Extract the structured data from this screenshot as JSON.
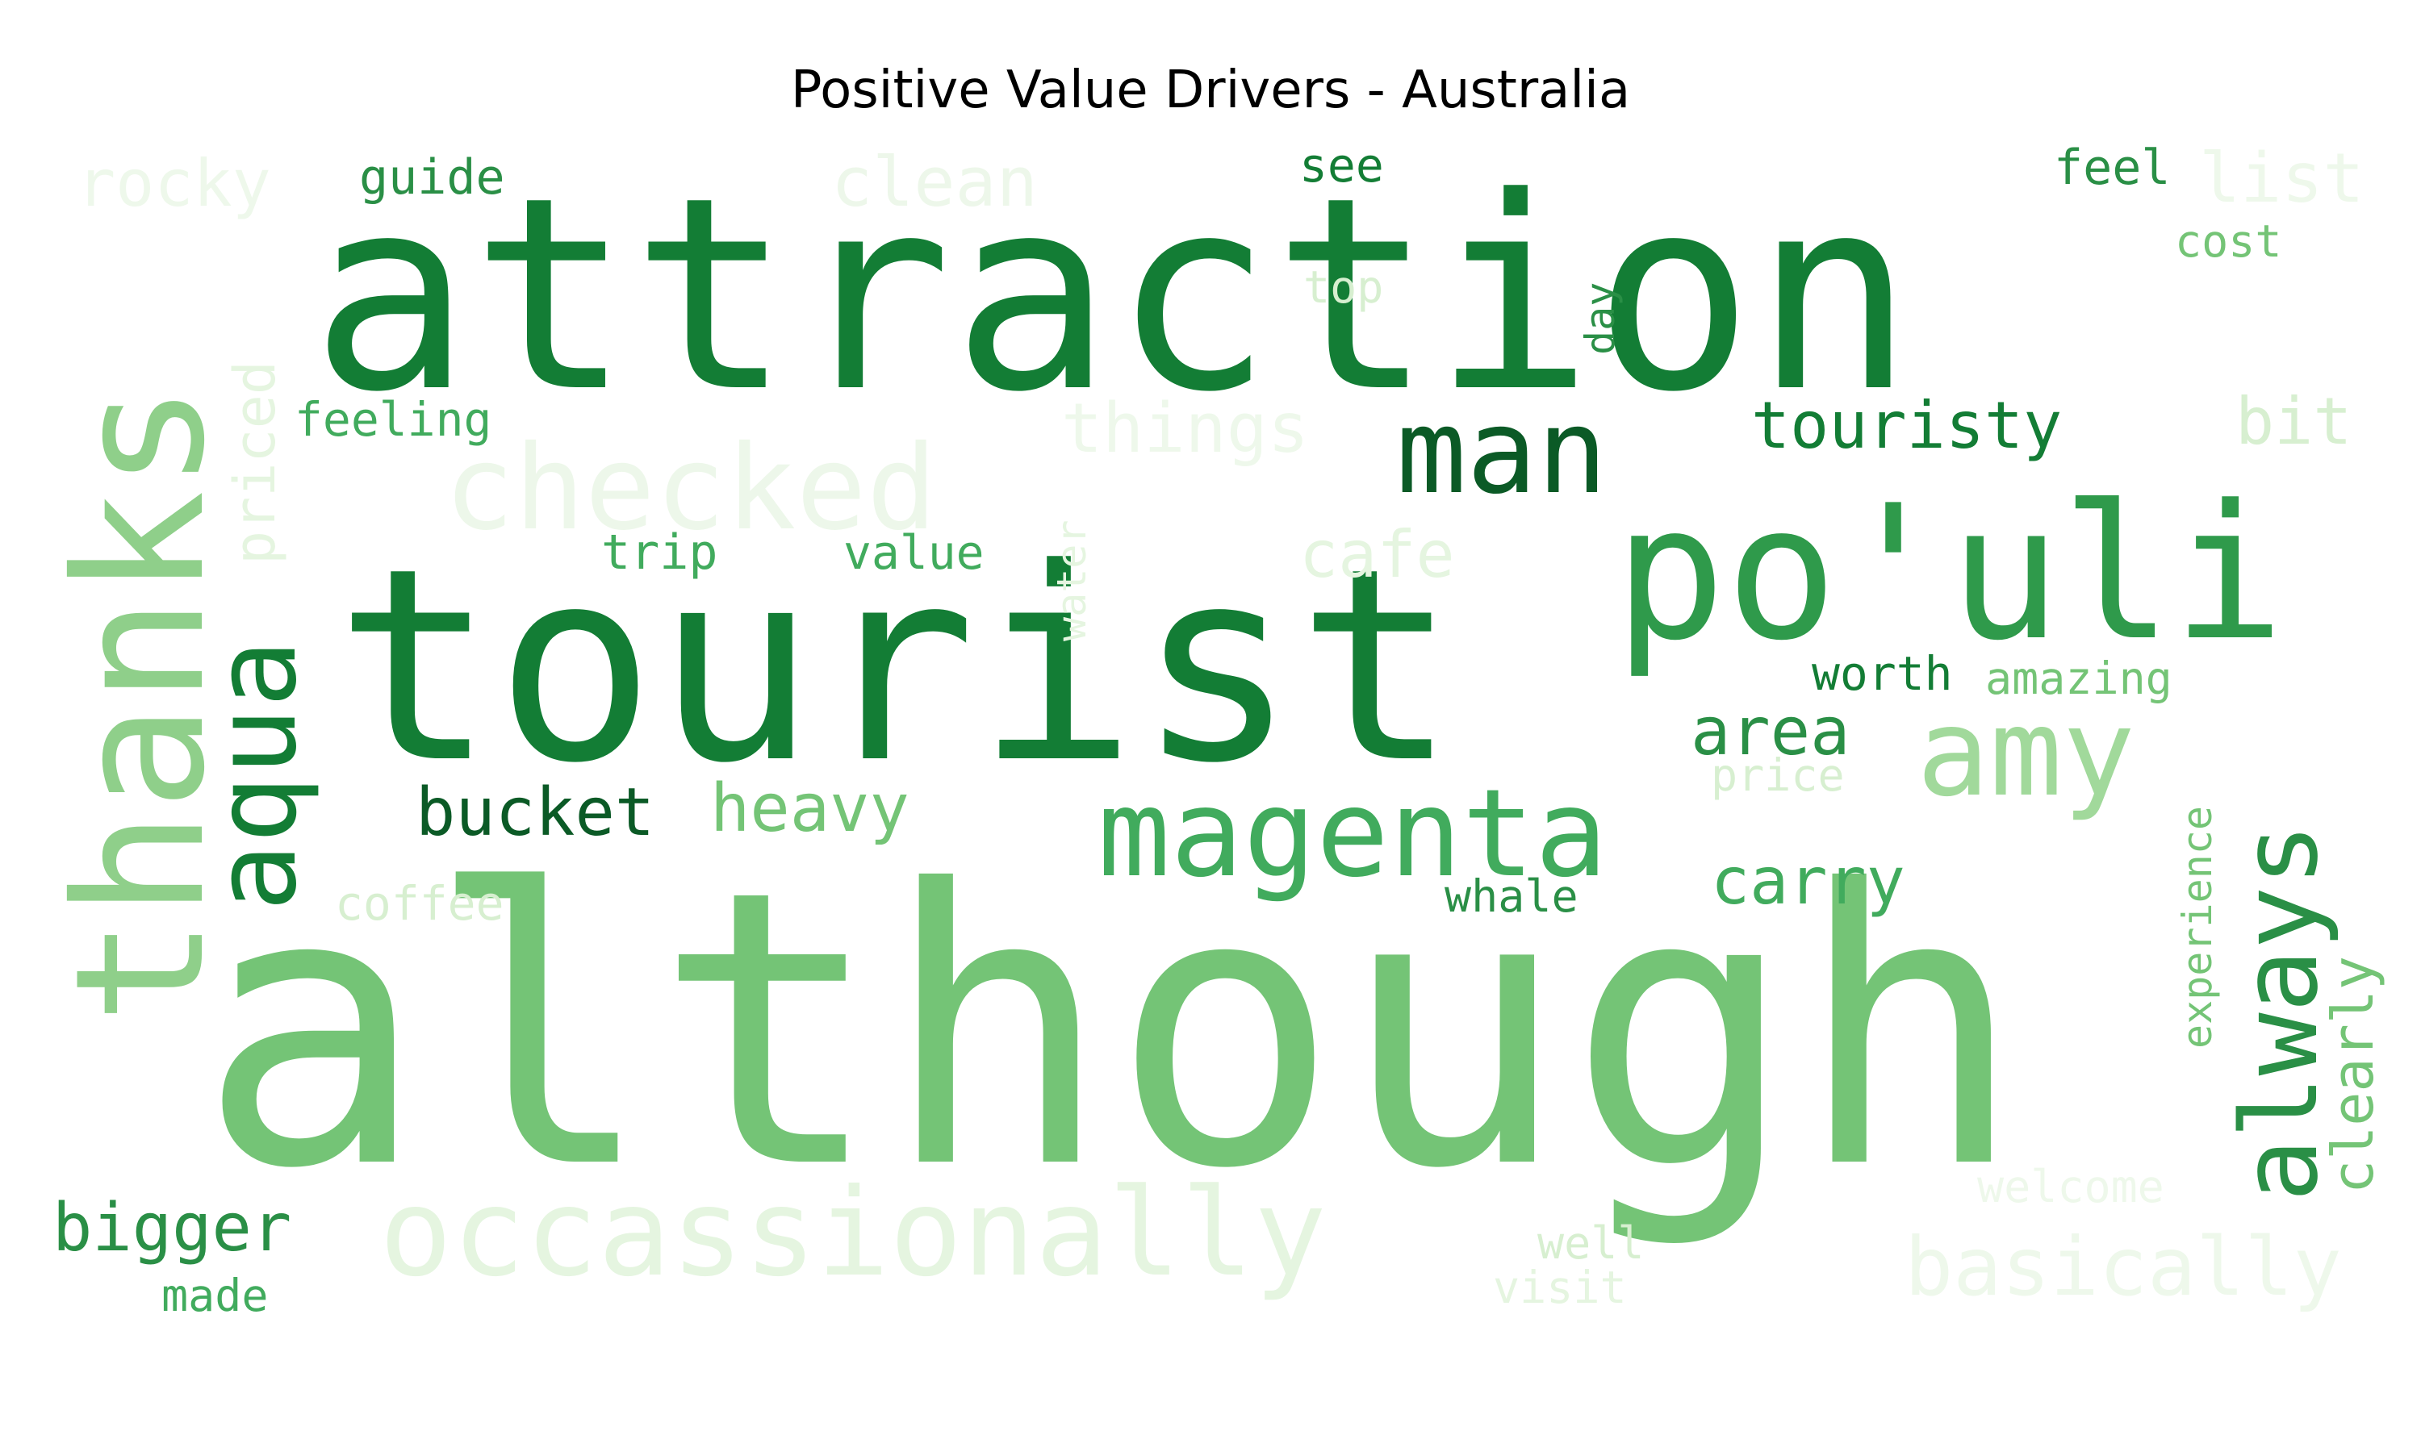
{
  "title": "Positive Value Drivers - Australia",
  "colors": {
    "background": "#ffffff",
    "title": "#000000",
    "palette": [
      "#e5f5e0",
      "#c7e9c0",
      "#a1d99b",
      "#74c476",
      "#41ab5d",
      "#238b45",
      "#137d35",
      "#00441b"
    ]
  },
  "words": [
    {
      "text": "although",
      "color": "#74c476"
    },
    {
      "text": "attraction",
      "color": "#137d35"
    },
    {
      "text": "tourist",
      "color": "#137d35"
    },
    {
      "text": "thanks",
      "color": "#8fcf8a"
    },
    {
      "text": "po'uli",
      "color": "#2f9a4b"
    },
    {
      "text": "man",
      "color": "#0b5a26"
    },
    {
      "text": "magenta",
      "color": "#41ab5d"
    },
    {
      "text": "amy",
      "color": "#a1d99b"
    },
    {
      "text": "always",
      "color": "#2a8f46"
    },
    {
      "text": "aqua",
      "color": "#137d35"
    },
    {
      "text": "occassionally",
      "color": "#e5f5e0"
    },
    {
      "text": "checked",
      "color": "#edf7ea"
    },
    {
      "text": "touristy",
      "color": "#137d35"
    },
    {
      "text": "basically",
      "color": "#eef8eb"
    },
    {
      "text": "bucket",
      "color": "#0b5a26"
    },
    {
      "text": "heavy",
      "color": "#74c476"
    },
    {
      "text": "carry",
      "color": "#41ab5d"
    },
    {
      "text": "area",
      "color": "#2a8f46"
    },
    {
      "text": "bigger",
      "color": "#2a8f46"
    },
    {
      "text": "clean",
      "color": "#edf7ea"
    },
    {
      "text": "rocky",
      "color": "#eef8eb"
    },
    {
      "text": "things",
      "color": "#eef8eb"
    },
    {
      "text": "cafe",
      "color": "#e5f5e0"
    },
    {
      "text": "bit",
      "color": "#d7efd0"
    },
    {
      "text": "list",
      "color": "#eef8eb"
    },
    {
      "text": "clearly",
      "color": "#74c476"
    },
    {
      "text": "priced",
      "color": "#e5f5e0"
    },
    {
      "text": "experience",
      "color": "#74c476"
    },
    {
      "text": "guide",
      "color": "#2a8f46"
    },
    {
      "text": "feeling",
      "color": "#41ab5d"
    },
    {
      "text": "trip",
      "color": "#41ab5d"
    },
    {
      "text": "value",
      "color": "#41ab5d"
    },
    {
      "text": "see",
      "color": "#137d35"
    },
    {
      "text": "feel",
      "color": "#2a8f46"
    },
    {
      "text": "cost",
      "color": "#74c476"
    },
    {
      "text": "top",
      "color": "#d7efd0"
    },
    {
      "text": "day",
      "color": "#2a8f46"
    },
    {
      "text": "worth",
      "color": "#137d35"
    },
    {
      "text": "amazing",
      "color": "#74c476"
    },
    {
      "text": "price",
      "color": "#d7efd0"
    },
    {
      "text": "whale",
      "color": "#2a8f46"
    },
    {
      "text": "coffee",
      "color": "#d7efd0"
    },
    {
      "text": "water",
      "color": "#e5f5e0"
    },
    {
      "text": "made",
      "color": "#41ab5d"
    },
    {
      "text": "welcome",
      "color": "#eef8eb"
    },
    {
      "text": "well",
      "color": "#d7efd0"
    },
    {
      "text": "visit",
      "color": "#e5f5e0"
    }
  ]
}
